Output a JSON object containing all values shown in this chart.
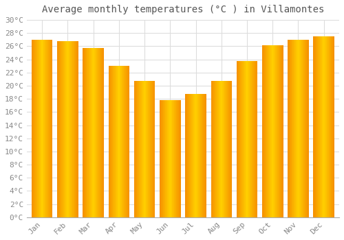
{
  "title": "Average monthly temperatures (°C ) in Villamontes",
  "months": [
    "Jan",
    "Feb",
    "Mar",
    "Apr",
    "May",
    "Jun",
    "Jul",
    "Aug",
    "Sep",
    "Oct",
    "Nov",
    "Dec"
  ],
  "temperatures": [
    27.0,
    26.8,
    25.7,
    23.0,
    20.7,
    17.8,
    18.7,
    20.7,
    23.8,
    26.1,
    27.0,
    27.5
  ],
  "bar_color_center": "#FFD000",
  "bar_color_edge": "#F59000",
  "background_color": "#FFFFFF",
  "plot_bg_color": "#FFFFFF",
  "grid_color": "#DDDDDD",
  "tick_label_color": "#888888",
  "title_color": "#555555",
  "ylim": [
    0,
    30
  ],
  "ytick_step": 2,
  "title_fontsize": 10,
  "tick_fontsize": 8
}
